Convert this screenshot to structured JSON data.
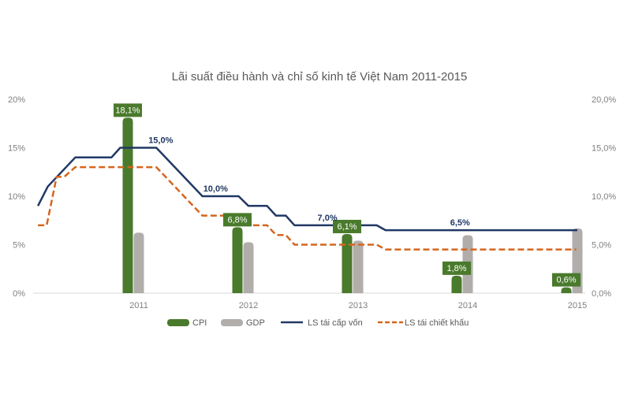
{
  "chart_data": {
    "type": "bar",
    "title": "Lãi suất điều hành và chỉ số kinh tế Việt Nam 2011-2015",
    "categories": [
      "2011",
      "2012",
      "2013",
      "2014",
      "2015"
    ],
    "ylim": [
      0,
      20
    ],
    "y_ticks_left": [
      "0%",
      "5%",
      "10%",
      "15%",
      "20%"
    ],
    "y_ticks_right": [
      "0,0%",
      "5,0%",
      "10,0%",
      "15,0%",
      "20,0%"
    ],
    "grid": false,
    "legend_position": "bottom",
    "bar_series": [
      {
        "name": "CPI",
        "color": "#4a7a2c",
        "values": [
          18.1,
          6.8,
          6.1,
          1.8,
          0.6
        ],
        "labels": [
          "18,1%",
          "6,8%",
          "6,1%",
          "1,8%",
          "0,6%"
        ]
      },
      {
        "name": "GDP",
        "color": "#b0adab",
        "values": [
          6.24,
          5.25,
          5.42,
          5.98,
          6.68
        ]
      }
    ],
    "line_series": [
      {
        "name": "LS  tái cấp vốn",
        "color": "#203864",
        "style": "solid",
        "points": [
          [
            2010.08,
            9
          ],
          [
            2010.17,
            11
          ],
          [
            2010.42,
            14
          ],
          [
            2010.75,
            14
          ],
          [
            2010.83,
            15
          ],
          [
            2011.16,
            15
          ],
          [
            2011.58,
            10
          ],
          [
            2011.91,
            10
          ],
          [
            2012.0,
            9
          ],
          [
            2012.17,
            9
          ],
          [
            2012.25,
            8
          ],
          [
            2012.34,
            8
          ],
          [
            2012.42,
            7
          ],
          [
            2013.17,
            7
          ],
          [
            2013.25,
            6.5
          ],
          [
            2015.0,
            6.5
          ]
        ],
        "labels": [
          {
            "text": "15,0%",
            "x": 2011.2,
            "y": 15
          },
          {
            "text": "10,0%",
            "x": 2011.7,
            "y": 10
          },
          {
            "text": "7,0%",
            "x": 2012.72,
            "y": 7
          },
          {
            "text": "6,5%",
            "x": 2013.93,
            "y": 6.5
          }
        ]
      },
      {
        "name": "LS  tái chiết khấu",
        "color": "#d4661e",
        "style": "dashed",
        "points": [
          [
            2010.08,
            7
          ],
          [
            2010.16,
            7
          ],
          [
            2010.25,
            12
          ],
          [
            2010.32,
            12
          ],
          [
            2010.42,
            13
          ],
          [
            2011.16,
            13
          ],
          [
            2011.58,
            8
          ],
          [
            2011.91,
            8
          ],
          [
            2011.98,
            7
          ],
          [
            2012.17,
            7
          ],
          [
            2012.25,
            6
          ],
          [
            2012.34,
            6
          ],
          [
            2012.42,
            5
          ],
          [
            2013.17,
            5
          ],
          [
            2013.25,
            4.5
          ],
          [
            2014.99,
            4.5
          ]
        ]
      }
    ]
  }
}
